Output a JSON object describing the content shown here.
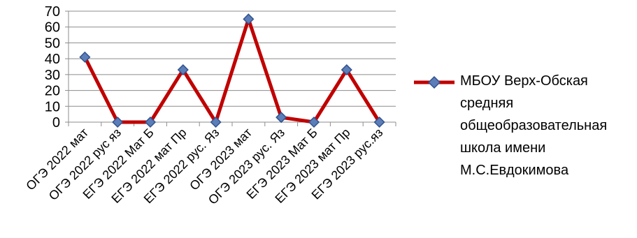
{
  "chart_data": {
    "type": "line",
    "categories": [
      "ОГЭ 2022 мат",
      "ОГЭ 2022 рус яз",
      "ЕГЭ 2022 Мат Б",
      "ЕГЭ 2022 мат Пр",
      "ЕГЭ 2022 рус. Яз",
      "ОГЭ 2023 мат",
      "ОГЭ 2023 рус. Яз",
      "ЕГЭ 2023 Мат Б",
      "ЕГЭ 2023 мат Пр",
      "ЕГЭ 2023 рус.яз"
    ],
    "series": [
      {
        "name": "МБОУ Верх-Обская средняя общеобразовательная школа имени М.С.Евдокимова",
        "values": [
          41,
          0,
          0,
          33,
          0,
          65,
          3,
          0,
          33,
          0
        ]
      }
    ],
    "ylim": [
      0,
      70
    ],
    "yticks": [
      0,
      10,
      20,
      30,
      40,
      50,
      60,
      70
    ],
    "grid": true,
    "legend_position": "right",
    "colors": {
      "line": "#C00000",
      "marker_fill": "#5B7DB8",
      "marker_stroke": "#31528F",
      "grid": "#8C8C8C"
    }
  },
  "legend": {
    "label": "МБОУ Верх-Обская средняя общеобразовательная школа имени М.С.Евдокимова"
  }
}
